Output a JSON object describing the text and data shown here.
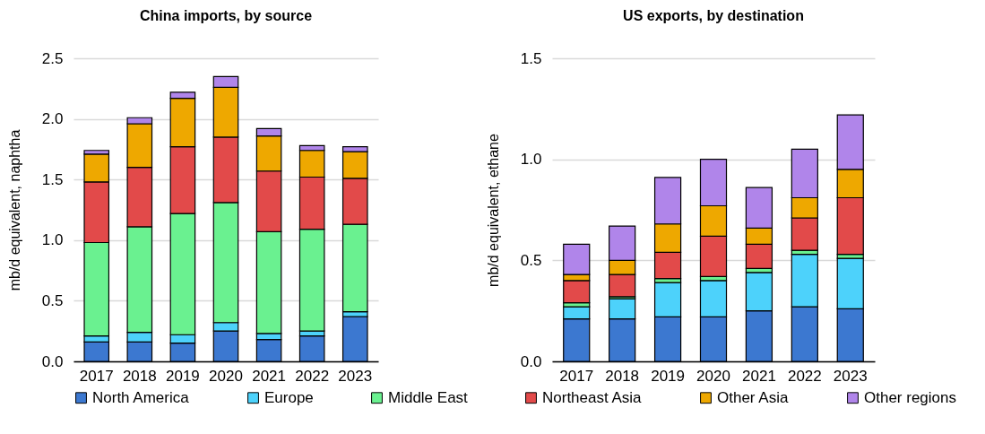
{
  "chart_data": [
    {
      "type": "bar",
      "title": "China imports, by source",
      "ylabel": "mb/d equivalent, naphtha",
      "stacked": true,
      "grid": "y",
      "legend": "bottom",
      "categories": [
        "2017",
        "2018",
        "2019",
        "2020",
        "2021",
        "2022",
        "2023"
      ],
      "ylim": [
        0,
        2.5
      ],
      "yticks": [
        {
          "value": 0,
          "label": "0.0"
        },
        {
          "value": 0.5,
          "label": "0.5"
        },
        {
          "value": 1,
          "label": "1.0"
        },
        {
          "value": 1.5,
          "label": "1.5"
        },
        {
          "value": 2,
          "label": "2.0"
        },
        {
          "value": 2.5,
          "label": "2.5"
        }
      ],
      "series": [
        {
          "name": "North America",
          "color": "#3c78d0",
          "values": [
            0.16,
            0.16,
            0.15,
            0.25,
            0.18,
            0.21,
            0.37
          ]
        },
        {
          "name": "Europe",
          "color": "#4dd2fb",
          "values": [
            0.05,
            0.08,
            0.07,
            0.07,
            0.05,
            0.04,
            0.04
          ]
        },
        {
          "name": "Middle East",
          "color": "#6af190",
          "values": [
            0.77,
            0.87,
            1.0,
            0.99,
            0.84,
            0.84,
            0.72
          ]
        },
        {
          "name": "Northeast Asia",
          "color": "#e24a4a",
          "values": [
            0.5,
            0.49,
            0.55,
            0.54,
            0.5,
            0.43,
            0.38
          ]
        },
        {
          "name": "Other Asia",
          "color": "#eea800",
          "values": [
            0.23,
            0.36,
            0.4,
            0.41,
            0.29,
            0.22,
            0.22
          ]
        },
        {
          "name": "Other regions",
          "color": "#b085ea",
          "values": [
            0.03,
            0.05,
            0.05,
            0.09,
            0.06,
            0.04,
            0.04
          ]
        }
      ]
    },
    {
      "type": "bar",
      "title": "US exports, by destination",
      "ylabel": "mb/d equivalent, ethane",
      "stacked": true,
      "grid": "y",
      "legend": "bottom",
      "categories": [
        "2017",
        "2018",
        "2019",
        "2020",
        "2021",
        "2022",
        "2023"
      ],
      "ylim": [
        0,
        1.5
      ],
      "yticks": [
        {
          "value": 0,
          "label": "0.0"
        },
        {
          "value": 0.5,
          "label": "0.5"
        },
        {
          "value": 1,
          "label": "1.0"
        },
        {
          "value": 1.5,
          "label": "1.5"
        }
      ],
      "series": [
        {
          "name": "North America",
          "color": "#3c78d0",
          "values": [
            0.21,
            0.21,
            0.22,
            0.22,
            0.25,
            0.27,
            0.26
          ]
        },
        {
          "name": "Europe",
          "color": "#4dd2fb",
          "values": [
            0.06,
            0.1,
            0.17,
            0.18,
            0.19,
            0.26,
            0.25
          ]
        },
        {
          "name": "Middle East",
          "color": "#6af190",
          "values": [
            0.02,
            0.01,
            0.02,
            0.02,
            0.02,
            0.02,
            0.02
          ]
        },
        {
          "name": "Northeast Asia",
          "color": "#e24a4a",
          "values": [
            0.11,
            0.11,
            0.13,
            0.2,
            0.12,
            0.16,
            0.28
          ]
        },
        {
          "name": "Other Asia",
          "color": "#eea800",
          "values": [
            0.03,
            0.07,
            0.14,
            0.15,
            0.08,
            0.1,
            0.14
          ]
        },
        {
          "name": "Other regions",
          "color": "#b085ea",
          "values": [
            0.15,
            0.17,
            0.23,
            0.23,
            0.2,
            0.24,
            0.27
          ]
        }
      ]
    }
  ]
}
